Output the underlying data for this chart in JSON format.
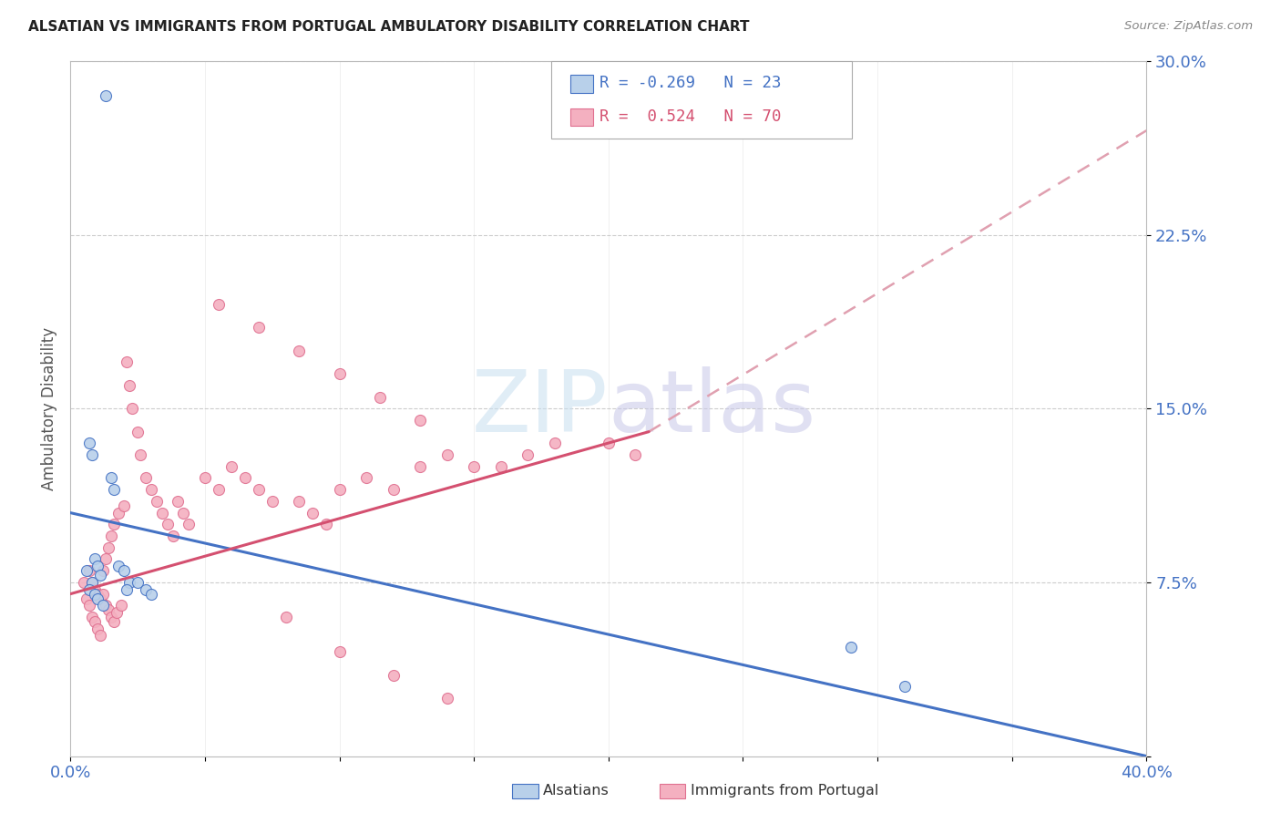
{
  "title": "ALSATIAN VS IMMIGRANTS FROM PORTUGAL AMBULATORY DISABILITY CORRELATION CHART",
  "source": "Source: ZipAtlas.com",
  "ylabel": "Ambulatory Disability",
  "xlim": [
    0.0,
    0.4
  ],
  "ylim": [
    0.0,
    0.3
  ],
  "ytick_vals": [
    0.0,
    0.075,
    0.15,
    0.225,
    0.3
  ],
  "ytick_labels": [
    "",
    "7.5%",
    "15.0%",
    "22.5%",
    "30.0%"
  ],
  "xtick_vals": [
    0.0,
    0.05,
    0.1,
    0.15,
    0.2,
    0.25,
    0.3,
    0.35,
    0.4
  ],
  "xtick_labels": [
    "0.0%",
    "",
    "",
    "",
    "",
    "",
    "",
    "",
    "40.0%"
  ],
  "watermark_zip": "ZIP",
  "watermark_atlas": "atlas",
  "blue_fill": "#b8d0ea",
  "blue_edge": "#4472c4",
  "pink_fill": "#f4b0c0",
  "pink_edge": "#e07090",
  "blue_line_color": "#4472c4",
  "pink_line_color": "#d45070",
  "pink_dash_color": "#e0a0b0",
  "axis_tick_color": "#4472c4",
  "grid_color": "#cccccc",
  "alsatian_x": [
    0.013,
    0.007,
    0.008,
    0.009,
    0.01,
    0.006,
    0.011,
    0.008,
    0.007,
    0.009,
    0.01,
    0.012,
    0.015,
    0.016,
    0.018,
    0.02,
    0.022,
    0.021,
    0.025,
    0.028,
    0.03,
    0.29,
    0.31
  ],
  "alsatian_y": [
    0.285,
    0.135,
    0.13,
    0.085,
    0.082,
    0.08,
    0.078,
    0.075,
    0.072,
    0.07,
    0.068,
    0.065,
    0.12,
    0.115,
    0.082,
    0.08,
    0.075,
    0.072,
    0.075,
    0.072,
    0.07,
    0.047,
    0.03
  ],
  "portugal_x": [
    0.005,
    0.006,
    0.007,
    0.007,
    0.008,
    0.008,
    0.009,
    0.009,
    0.01,
    0.01,
    0.011,
    0.011,
    0.012,
    0.012,
    0.013,
    0.013,
    0.014,
    0.014,
    0.015,
    0.015,
    0.016,
    0.016,
    0.017,
    0.018,
    0.019,
    0.02,
    0.021,
    0.022,
    0.023,
    0.025,
    0.026,
    0.028,
    0.03,
    0.032,
    0.034,
    0.036,
    0.038,
    0.04,
    0.042,
    0.044,
    0.05,
    0.055,
    0.06,
    0.065,
    0.07,
    0.075,
    0.085,
    0.09,
    0.095,
    0.1,
    0.11,
    0.12,
    0.13,
    0.14,
    0.15,
    0.16,
    0.17,
    0.18,
    0.2,
    0.21,
    0.08,
    0.1,
    0.12,
    0.14,
    0.055,
    0.07,
    0.085,
    0.1,
    0.115,
    0.13
  ],
  "portugal_y": [
    0.075,
    0.068,
    0.065,
    0.08,
    0.06,
    0.075,
    0.058,
    0.072,
    0.055,
    0.07,
    0.052,
    0.068,
    0.07,
    0.08,
    0.065,
    0.085,
    0.063,
    0.09,
    0.06,
    0.095,
    0.058,
    0.1,
    0.062,
    0.105,
    0.065,
    0.108,
    0.17,
    0.16,
    0.15,
    0.14,
    0.13,
    0.12,
    0.115,
    0.11,
    0.105,
    0.1,
    0.095,
    0.11,
    0.105,
    0.1,
    0.12,
    0.115,
    0.125,
    0.12,
    0.115,
    0.11,
    0.11,
    0.105,
    0.1,
    0.115,
    0.12,
    0.115,
    0.125,
    0.13,
    0.125,
    0.125,
    0.13,
    0.135,
    0.135,
    0.13,
    0.06,
    0.045,
    0.035,
    0.025,
    0.195,
    0.185,
    0.175,
    0.165,
    0.155,
    0.145
  ],
  "blue_line": [
    0.0,
    0.4,
    0.105,
    0.0
  ],
  "pink_line": [
    0.0,
    0.215,
    0.07,
    0.14
  ],
  "pink_dash": [
    0.215,
    0.4,
    0.14,
    0.27
  ]
}
